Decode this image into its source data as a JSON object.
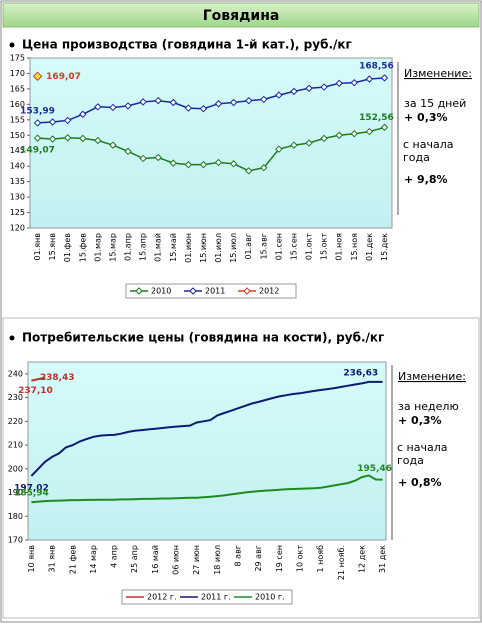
{
  "header": {
    "title": "Говядина"
  },
  "chart_data": [
    {
      "type": "line",
      "markers": true,
      "title": "Цена производства (говядина 1-й кат.), руб./кг",
      "categories": [
        "01.янв",
        "15.янв",
        "01.фев",
        "15.фев",
        "01.мар",
        "15.мар",
        "01.апр",
        "15.апр",
        "01.май",
        "15.май",
        "01.июн",
        "15.июн",
        "01.июл",
        "15.июл",
        "01.авг",
        "15.авг",
        "01.сен",
        "15.сен",
        "01.окт",
        "15.окт",
        "01.ноя",
        "15.ноя",
        "01.дек",
        "15.дек"
      ],
      "series": [
        {
          "name": "2010",
          "color": "#1f7a1f",
          "values": [
            149.07,
            148.8,
            149.2,
            149.0,
            148.3,
            146.8,
            144.8,
            142.5,
            142.8,
            141.0,
            140.5,
            140.5,
            141.2,
            140.8,
            138.5,
            139.5,
            145.5,
            146.8,
            147.5,
            149.0,
            150.0,
            150.5,
            151.2,
            152.56
          ],
          "value_labels": [
            "149,07",
            null,
            null,
            null,
            null,
            null,
            null,
            null,
            null,
            null,
            null,
            null,
            null,
            null,
            null,
            null,
            null,
            null,
            null,
            null,
            null,
            null,
            null,
            "152,56"
          ]
        },
        {
          "name": "2011",
          "color": "#1c2a9c",
          "values": [
            153.99,
            154.3,
            154.8,
            156.8,
            159.2,
            159.0,
            159.5,
            160.8,
            161.2,
            160.6,
            158.8,
            158.6,
            160.2,
            160.6,
            161.2,
            161.6,
            163.0,
            164.2,
            165.2,
            165.6,
            166.8,
            167.0,
            168.2,
            168.56
          ],
          "value_labels": [
            "153,99",
            null,
            null,
            null,
            null,
            null,
            null,
            null,
            null,
            null,
            null,
            null,
            null,
            null,
            null,
            null,
            null,
            null,
            null,
            null,
            null,
            null,
            null,
            "168,56"
          ]
        },
        {
          "name": "2012",
          "color": "#d9391f",
          "values": [
            169.07,
            null,
            null,
            null,
            null,
            null,
            null,
            null,
            null,
            null,
            null,
            null,
            null,
            null,
            null,
            null,
            null,
            null,
            null,
            null,
            null,
            null,
            null,
            null
          ],
          "value_labels": [
            "169,07",
            null,
            null,
            null,
            null,
            null,
            null,
            null,
            null,
            null,
            null,
            null,
            null,
            null,
            null,
            null,
            null,
            null,
            null,
            null,
            null,
            null,
            null,
            null
          ]
        }
      ],
      "ylim": [
        120,
        175
      ],
      "yticks": [
        120,
        125,
        130,
        135,
        140,
        145,
        150,
        155,
        160,
        165,
        170,
        175
      ],
      "change": {
        "title": "Изменение:",
        "period": "за 15 дней",
        "period_value": "+ 0,3%",
        "since": "с начала года",
        "since_value": "+ 9,8%"
      }
    },
    {
      "type": "line",
      "markers": false,
      "title": "Потребительские цены (говядина на кости), руб./кг",
      "categories": [
        "10 янв",
        null,
        null,
        "31 янв",
        null,
        null,
        "21 фев",
        null,
        null,
        "14 мар",
        null,
        null,
        "4 апр",
        null,
        null,
        "25 апр",
        null,
        null,
        "16 май",
        null,
        null,
        "06 июн",
        null,
        null,
        "27 июн",
        null,
        null,
        "18 июл",
        null,
        null,
        "8 авг",
        null,
        null,
        "29 авг",
        null,
        null,
        "19 сен",
        null,
        null,
        "10 окт",
        null,
        null,
        "1 нояб",
        null,
        null,
        "21 нояб.",
        null,
        null,
        "12 дек",
        null,
        null,
        "31 дек"
      ],
      "series": [
        {
          "name": "2012 г.",
          "color": "#c0302a",
          "values": [
            237.1,
            237.8,
            238.43,
            null,
            null,
            null,
            null,
            null,
            null,
            null,
            null,
            null,
            null,
            null,
            null,
            null,
            null,
            null,
            null,
            null,
            null,
            null,
            null,
            null,
            null,
            null,
            null,
            null,
            null,
            null,
            null,
            null,
            null,
            null,
            null,
            null,
            null,
            null,
            null,
            null,
            null,
            null,
            null,
            null,
            null,
            null,
            null,
            null,
            null,
            null,
            null,
            null
          ],
          "value_labels": [
            "237,10",
            null,
            "238,43",
            null,
            null,
            null,
            null,
            null,
            null,
            null,
            null,
            null,
            null,
            null,
            null,
            null,
            null,
            null,
            null,
            null,
            null,
            null,
            null,
            null,
            null,
            null,
            null,
            null,
            null,
            null,
            null,
            null,
            null,
            null,
            null,
            null,
            null,
            null,
            null,
            null,
            null,
            null,
            null,
            null,
            null,
            null,
            null,
            null,
            null,
            null,
            null,
            null
          ]
        },
        {
          "name": "2011 г.",
          "color": "#0c1c6e",
          "values": [
            197.02,
            200,
            203,
            205,
            206.5,
            209,
            210,
            211.5,
            212.5,
            213.5,
            214,
            214.2,
            214.3,
            214.8,
            215.5,
            216,
            216.3,
            216.6,
            216.9,
            217.2,
            217.5,
            217.8,
            218,
            218.2,
            219.5,
            220,
            220.5,
            222.5,
            223.5,
            224.5,
            225.5,
            226.5,
            227.5,
            228.2,
            229,
            229.8,
            230.5,
            231,
            231.5,
            231.8,
            232.3,
            232.8,
            233.2,
            233.6,
            234,
            234.5,
            235,
            235.5,
            236,
            236.63,
            236.6,
            236.6
          ],
          "value_labels": [
            "197,02",
            null,
            null,
            null,
            null,
            null,
            null,
            null,
            null,
            null,
            null,
            null,
            null,
            null,
            null,
            null,
            null,
            null,
            null,
            null,
            null,
            null,
            null,
            null,
            null,
            null,
            null,
            null,
            null,
            null,
            null,
            null,
            null,
            null,
            null,
            null,
            null,
            null,
            null,
            null,
            null,
            null,
            null,
            null,
            null,
            null,
            null,
            null,
            null,
            "236,63",
            null,
            null
          ]
        },
        {
          "name": "2010 г.",
          "color": "#1f8a1f",
          "values": [
            185.94,
            186.2,
            186.4,
            186.5,
            186.6,
            186.7,
            186.8,
            186.8,
            186.9,
            186.9,
            187,
            187,
            187,
            187.1,
            187.1,
            187.2,
            187.3,
            187.3,
            187.4,
            187.5,
            187.5,
            187.6,
            187.7,
            187.8,
            187.8,
            188,
            188.2,
            188.5,
            188.8,
            189.2,
            189.6,
            190,
            190.3,
            190.6,
            190.8,
            191,
            191.2,
            191.4,
            191.5,
            191.6,
            191.7,
            191.8,
            192,
            192.5,
            193,
            193.5,
            194,
            195,
            196.5,
            197.2,
            195.5,
            195.46
          ],
          "value_labels": [
            "185,94",
            null,
            null,
            null,
            null,
            null,
            null,
            null,
            null,
            null,
            null,
            null,
            null,
            null,
            null,
            null,
            null,
            null,
            null,
            null,
            null,
            null,
            null,
            null,
            null,
            null,
            null,
            null,
            null,
            null,
            null,
            null,
            null,
            null,
            null,
            null,
            null,
            null,
            null,
            null,
            null,
            null,
            null,
            null,
            null,
            null,
            null,
            null,
            null,
            null,
            null,
            "195,46"
          ]
        }
      ],
      "ylim": [
        170,
        245
      ],
      "yticks": [
        170,
        180,
        190,
        200,
        210,
        220,
        230,
        240
      ],
      "change": {
        "title": "Изменение:",
        "period": "за неделю",
        "period_value": "+ 0,3%",
        "since": "с начала года",
        "since_value": "+ 0,8%"
      }
    }
  ]
}
